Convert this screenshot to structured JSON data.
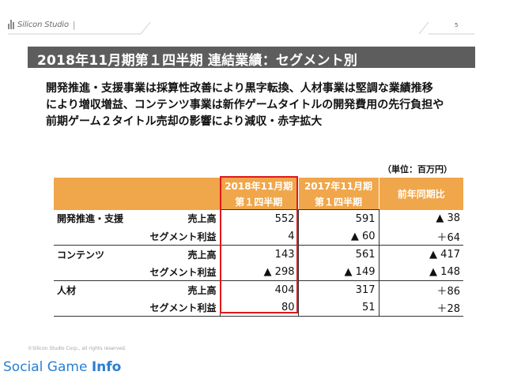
{
  "header": {
    "logo_text": "Silicon Studio",
    "page_number": "5"
  },
  "title": "2018年11月期第１四半期 連結業績：セグメント別",
  "summary_lines": [
    "開発推進・支援事業は採算性改善により黒字転換、人材事業は堅調な業績推移",
    "により増収増益、コンテンツ事業は新作ゲームタイトルの開発費用の先行負担や",
    "前期ゲーム２タイトル売却の影響により減収・赤字拡大"
  ],
  "unit_note": "（単位：百万円）",
  "table": {
    "header": {
      "col_current_line1": "2018年11月期",
      "col_current_line2": "第１四半期",
      "col_prior_line1": "2017年11月期",
      "col_prior_line2": "第１四半期",
      "col_diff": "前年同期比"
    },
    "rows": [
      {
        "segment": "開発推進・支援",
        "metric": "売上高",
        "current": "552",
        "prior": "591",
        "diff": "▲ 38"
      },
      {
        "segment": "",
        "metric": "セグメント利益",
        "current": "4",
        "prior": "▲ 60",
        "diff": "＋64"
      },
      {
        "segment": "コンテンツ",
        "metric": "売上高",
        "current": "143",
        "prior": "561",
        "diff": "▲ 417"
      },
      {
        "segment": "",
        "metric": "セグメント利益",
        "current": "▲ 298",
        "prior": "▲ 149",
        "diff": "▲ 148"
      },
      {
        "segment": "人材",
        "metric": "売上高",
        "current": "404",
        "prior": "317",
        "diff": "＋86"
      },
      {
        "segment": "",
        "metric": "セグメント利益",
        "current": "80",
        "prior": "51",
        "diff": "＋28"
      }
    ]
  },
  "footer": {
    "copyright": "©Silicon Studio Corp., all rights reserved.",
    "watermark_prefix": "Social Game ",
    "watermark_bold": "Info"
  },
  "colors": {
    "title_bar": "#5d5d5d",
    "table_header": "#f0a64a",
    "highlight_border": "#e0181b",
    "watermark": "#2a7fd0"
  }
}
